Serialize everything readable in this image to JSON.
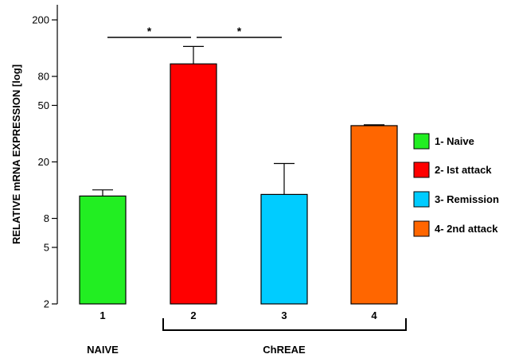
{
  "chart_data": {
    "type": "bar",
    "ylabel": "RELATIVE mRNA EXPRESSION [log]",
    "yscale": "log",
    "ylim": [
      2,
      200
    ],
    "yticks": [
      2,
      5,
      8,
      20,
      50,
      80,
      200
    ],
    "categories": [
      "1",
      "2",
      "3",
      "4"
    ],
    "values": [
      11.5,
      98,
      11.8,
      36
    ],
    "error_upper": [
      12.7,
      130,
      19.5,
      36.5
    ],
    "colors": [
      "#22ee22",
      "#ff0000",
      "#00ccff",
      "#ff6600"
    ],
    "legend": [
      "1- Naive",
      "2- Ist attack",
      "3- Remission",
      "4- 2nd attack"
    ],
    "legend_position": "right",
    "groups": [
      {
        "label": "NAIVE",
        "categories": [
          "1"
        ]
      },
      {
        "label": "ChREAE",
        "categories": [
          "2",
          "3",
          "4"
        ]
      }
    ],
    "significance": [
      {
        "from": "1",
        "to": "2",
        "label": "*"
      },
      {
        "from": "2",
        "to": "3",
        "label": "*"
      }
    ],
    "grid": false
  }
}
